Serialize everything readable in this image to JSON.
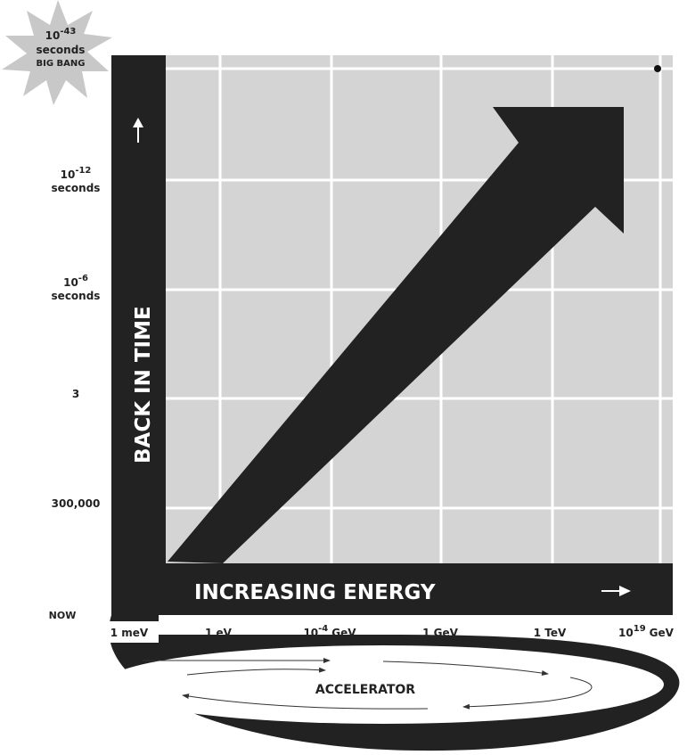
{
  "starburst": {
    "base": "10",
    "exponent": "-43",
    "unit": "seconds",
    "note": "BIG BANG"
  },
  "time_labels": [
    {
      "base": "10",
      "exponent": "-12",
      "unit": "seconds"
    },
    {
      "base": "10",
      "exponent": "-6",
      "unit": "seconds"
    },
    {
      "text": "3"
    },
    {
      "text": "300,000"
    },
    {
      "text": "NOW"
    }
  ],
  "axis_titles": {
    "y": "BACK IN TIME",
    "x": "INCREASING ENERGY"
  },
  "energy_labels": [
    {
      "text": "1 meV"
    },
    {
      "text": "1 eV"
    },
    {
      "base": "10",
      "exponent": "-4",
      "unit": "GeV"
    },
    {
      "text": "1 GeV"
    },
    {
      "text": "1 TeV"
    },
    {
      "base": "10",
      "exponent": "19",
      "unit": "GeV"
    }
  ],
  "accelerator": "ACCELERATOR"
}
